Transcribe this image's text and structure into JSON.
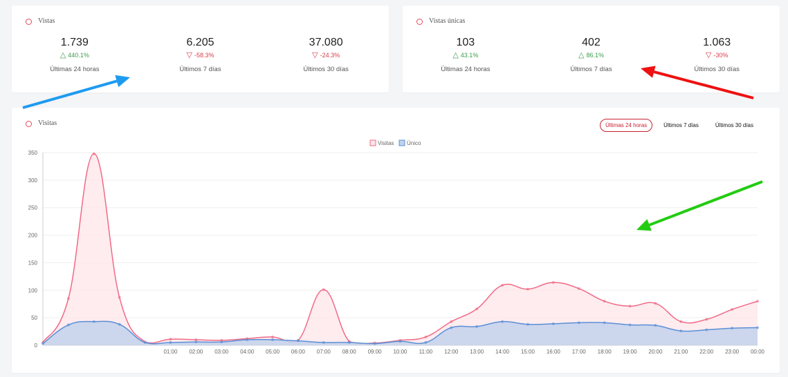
{
  "vistas": {
    "title": "Vistas",
    "stats": [
      {
        "value": "1.739",
        "change": "440.1%",
        "direction": "up",
        "period": "Últimas 24 horas"
      },
      {
        "value": "6.205",
        "change": "-58.3%",
        "direction": "down",
        "period": "Últimos 7 días"
      },
      {
        "value": "37.080",
        "change": "-24.3%",
        "direction": "down",
        "period": "Últimos 30 días"
      }
    ]
  },
  "vistas_unicas": {
    "title": "Vistas únicas",
    "stats": [
      {
        "value": "103",
        "change": "43.1%",
        "direction": "up",
        "period": "Últimas 24 horas"
      },
      {
        "value": "402",
        "change": "86.1%",
        "direction": "up",
        "period": "Últimos 7 días"
      },
      {
        "value": "1.063",
        "change": "-30%",
        "direction": "down",
        "period": "Últimos 30 días"
      }
    ]
  },
  "chart_card": {
    "title": "Visitas",
    "range_buttons": [
      "Últimas 24 horas",
      "Últimos 7 días",
      "Últimos 30 días"
    ],
    "active_range": 0
  },
  "icons": {
    "up": "△",
    "down": "▽"
  },
  "colors": {
    "accent": "#c8202f",
    "up": "#3a9b4a",
    "down": "#d93c4a",
    "visitas_line": "#f06a86",
    "visitas_fill": "#fde6ea",
    "unico_line": "#5a8fd6",
    "unico_fill": "#c3d2ec",
    "annotation_blue": "#1e9bf0",
    "annotation_red": "#ee1111",
    "annotation_green": "#22cc11"
  },
  "chart_data": {
    "type": "area",
    "title": "",
    "xlabel": "",
    "ylabel": "",
    "x": [
      "",
      "",
      "",
      "",
      "",
      "01:00",
      "02:00",
      "03:00",
      "04:00",
      "05:00",
      "06:00",
      "07:00",
      "08:00",
      "09:00",
      "10:00",
      "11:00",
      "12:00",
      "13:00",
      "14:00",
      "15:00",
      "16:00",
      "17:00",
      "18:00",
      "19:00",
      "20:00",
      "21:00",
      "22:00",
      "23:00",
      "00:00"
    ],
    "series": [
      {
        "name": "Visitas",
        "values": [
          5,
          85,
          348,
          87,
          6,
          11,
          10,
          9,
          12,
          15,
          9,
          101,
          7,
          4,
          9,
          15,
          43,
          66,
          109,
          102,
          114,
          103,
          80,
          71,
          76,
          43,
          47,
          65,
          80
        ]
      },
      {
        "name": "Único",
        "values": [
          3,
          37,
          43,
          38,
          5,
          5,
          6,
          6,
          10,
          10,
          8,
          5,
          5,
          3,
          7,
          5,
          32,
          34,
          43,
          38,
          39,
          41,
          41,
          37,
          36,
          26,
          28,
          31,
          32
        ]
      }
    ],
    "ylim": [
      0,
      350
    ],
    "yticks": [
      0,
      50,
      100,
      150,
      200,
      250,
      300,
      350
    ],
    "grid": true,
    "legend_position": "top-center"
  }
}
